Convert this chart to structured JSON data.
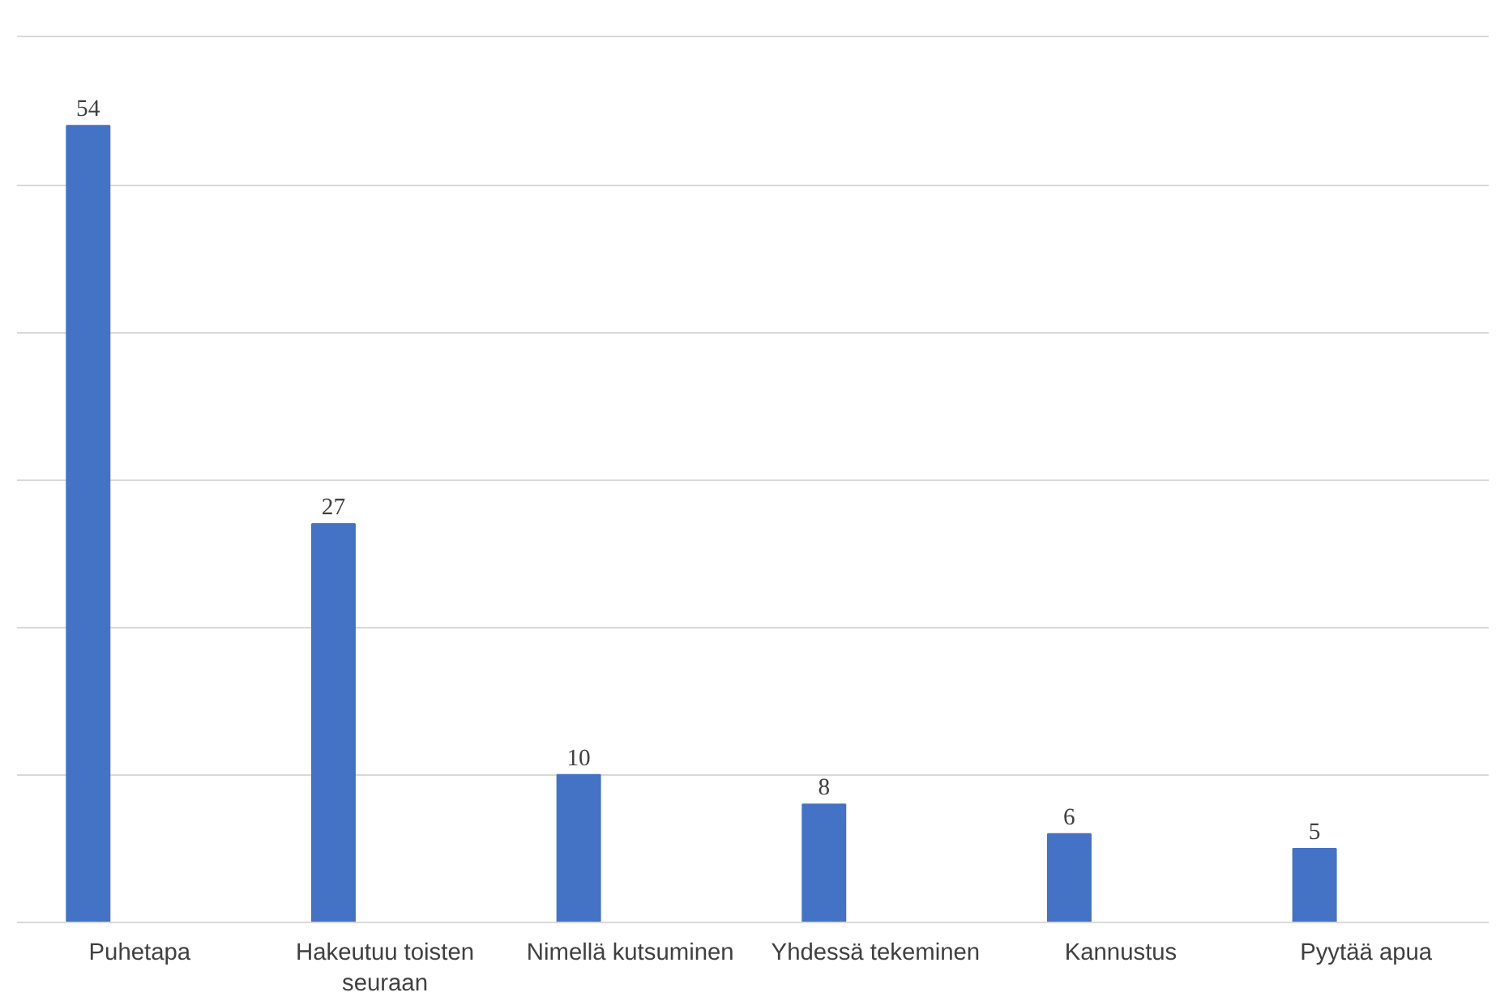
{
  "chart_data": {
    "type": "bar",
    "categories": [
      "Puhetapa",
      "Hakeutuu toisten seuraan",
      "Nimellä kutsuminen",
      "Yhdessä tekeminen",
      "Kannustus",
      "Pyytää apua"
    ],
    "values": [
      54,
      27,
      10,
      8,
      6,
      5
    ],
    "color": "#4472c4",
    "data_labels": true,
    "grid": "y",
    "tick_labels": "x"
  }
}
